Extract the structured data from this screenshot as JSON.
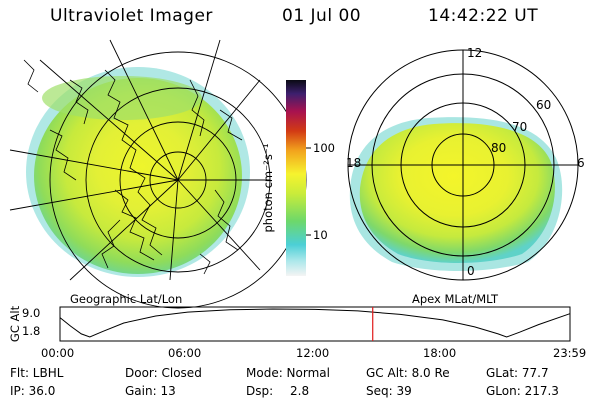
{
  "header": {
    "instrument": "Ultraviolet Imager",
    "date": "01 Jul 00",
    "time": "14:42:22 UT"
  },
  "left_panel": {
    "caption": "Geographic Lat/Lon"
  },
  "right_panel": {
    "caption": "Apex MLat/MLT",
    "mlt_labels": {
      "top": "12",
      "left": "18",
      "right": "6",
      "bottom": "0"
    },
    "mlat_labels": [
      "60",
      "70",
      "80"
    ]
  },
  "colorbar": {
    "unit_label": "photon cm⁻²s⁻¹",
    "ticks": [
      "100",
      "10"
    ],
    "scale": "log",
    "colors": [
      "#f4f4f4",
      "#4ccfd6",
      "#6dd86a",
      "#c9ec3a",
      "#f6f32e",
      "#f2a31d",
      "#d23a14",
      "#a8124f",
      "#3d1f6e",
      "#0a0a14"
    ]
  },
  "timeline": {
    "ylabel": "GC Alt",
    "y_ticks": [
      "9.0",
      "1.8"
    ],
    "x_ticks": [
      "00:00",
      "06:00",
      "12:00",
      "18:00",
      "23:59"
    ],
    "altitude_curve": [
      {
        "t": 0.0,
        "alt": 6.8
      },
      {
        "t": 0.5,
        "alt": 4.6
      },
      {
        "t": 1.0,
        "alt": 2.6
      },
      {
        "t": 1.4,
        "alt": 1.8
      },
      {
        "t": 2.0,
        "alt": 3.2
      },
      {
        "t": 3.0,
        "alt": 5.4
      },
      {
        "t": 4.5,
        "alt": 7.2
      },
      {
        "t": 6.0,
        "alt": 8.2
      },
      {
        "t": 8.0,
        "alt": 8.8
      },
      {
        "t": 10.0,
        "alt": 9.0
      },
      {
        "t": 12.0,
        "alt": 8.9
      },
      {
        "t": 14.0,
        "alt": 8.5
      },
      {
        "t": 16.0,
        "alt": 7.6
      },
      {
        "t": 18.0,
        "alt": 6.2
      },
      {
        "t": 19.5,
        "alt": 4.4
      },
      {
        "t": 20.6,
        "alt": 2.6
      },
      {
        "t": 21.0,
        "alt": 1.8
      },
      {
        "t": 21.6,
        "alt": 3.0
      },
      {
        "t": 22.5,
        "alt": 5.0
      },
      {
        "t": 23.98,
        "alt": 7.8
      }
    ],
    "current_time_hours": 14.706,
    "marker_color": "#e01a1a"
  },
  "info": {
    "filter": "Flt: LBHL",
    "ip": "IP: 36.0",
    "door": "Door: Closed",
    "gain": "Gain: 13",
    "mode": "Mode: Normal",
    "dsp_label": "Dsp:",
    "dsp_value": "2.8",
    "gc_alt": "GC Alt: 8.0 Re",
    "seq": "Seq: 39",
    "glat": "GLat: 77.7",
    "glon": "GLon: 217.3"
  }
}
